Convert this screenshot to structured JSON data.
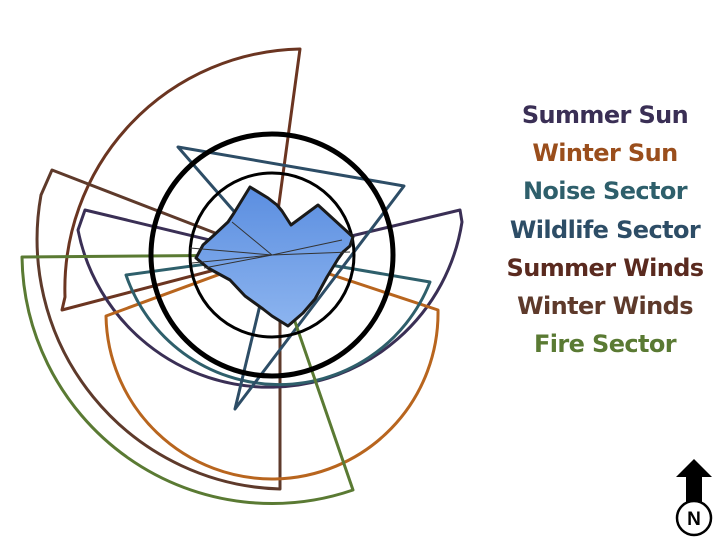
{
  "colors": {
    "summer_sun": "#3a2f55",
    "winter_sun": "#b8651e",
    "noise_sector": "#2e5f6b",
    "wildlife_sector": "#2d4d66",
    "summer_winds": "#6b3521",
    "winter_winds": "#5e3a2b",
    "fire_sector": "#5a7a33",
    "site_fill": "#6f9ce3",
    "site_stroke": "#1a1a1a",
    "rings": "#000000"
  },
  "legend": [
    {
      "label": "Summer Sun",
      "color": "#3a2f55"
    },
    {
      "label": "Winter Sun",
      "color": "#9a4e1c"
    },
    {
      "label": "Noise Sector",
      "color": "#2e5f6b"
    },
    {
      "label": "Wildlife Sector",
      "color": "#2d4d66"
    },
    {
      "label": "Summer Winds",
      "color": "#5a2a1f"
    },
    {
      "label": "Winter Winds",
      "color": "#5e3a2b"
    },
    {
      "label": "Fire Sector",
      "color": "#5a7a33"
    }
  ],
  "north_arrow": {
    "label": "N",
    "icon": "north-arrow-icon"
  }
}
